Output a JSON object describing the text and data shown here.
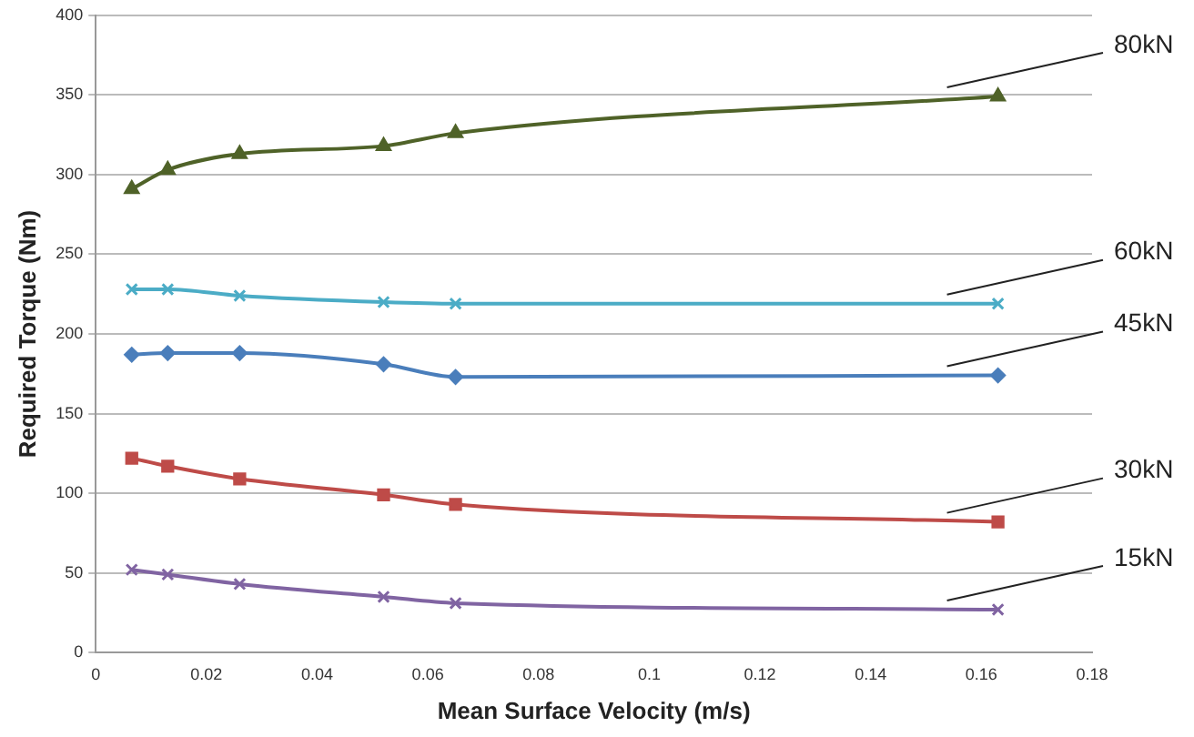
{
  "chart_data": {
    "type": "line",
    "xlabel": "Mean Surface Velocity (m/s)",
    "ylabel": "Required Torque (Nm)",
    "x": [
      0.0065,
      0.013,
      0.026,
      0.052,
      0.065,
      0.163
    ],
    "series": [
      {
        "name": "80kN",
        "color": "#4f6228",
        "marker": "triangle",
        "values": [
          291,
          303,
          313,
          318,
          326,
          349
        ]
      },
      {
        "name": "60kN",
        "color": "#4bacc6",
        "marker": "cross",
        "values": [
          228,
          228,
          224,
          220,
          219,
          219
        ]
      },
      {
        "name": "45kN",
        "color": "#4a7ebb",
        "marker": "diamond",
        "values": [
          187,
          188,
          188,
          181,
          173,
          174
        ]
      },
      {
        "name": "30kN",
        "color": "#be4b48",
        "marker": "square",
        "values": [
          122,
          117,
          109,
          99,
          93,
          82
        ]
      },
      {
        "name": "15kN",
        "color": "#8064a2",
        "marker": "cross",
        "values": [
          52,
          49,
          43,
          35,
          31,
          27
        ]
      }
    ],
    "xlim": [
      0,
      0.18
    ],
    "xticks": [
      0,
      0.02,
      0.04,
      0.06,
      0.08,
      0.1,
      0.12,
      0.14,
      0.16,
      0.18
    ],
    "ylim": [
      0,
      400
    ],
    "yticks": [
      0,
      50,
      100,
      150,
      200,
      250,
      300,
      350,
      400
    ],
    "grid": "y",
    "legend": false
  }
}
